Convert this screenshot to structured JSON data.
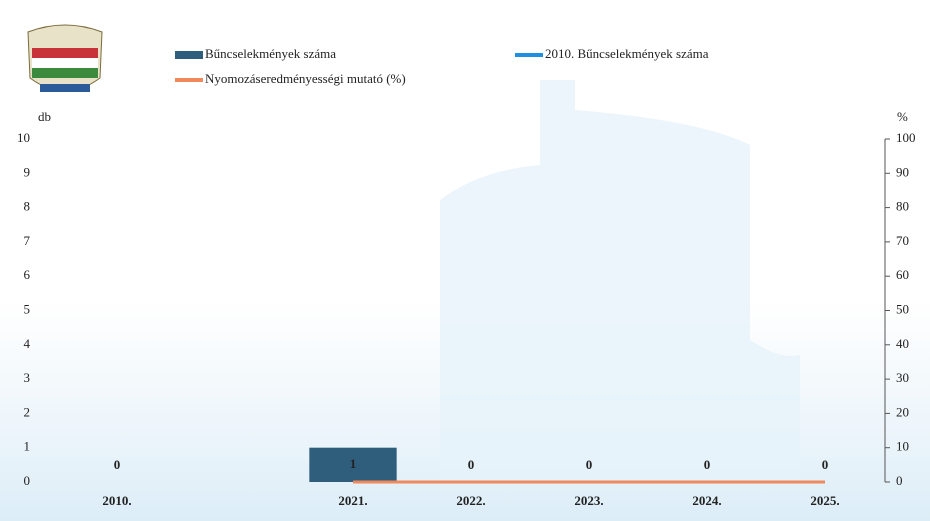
{
  "chart_data": {
    "type": "bar",
    "categories": [
      "2010.",
      null,
      "2021.",
      "2022.",
      "2023.",
      "2024.",
      "2025."
    ],
    "series": [
      {
        "name": "Bűncselekmények száma",
        "type": "bar",
        "color": "#2f5d7c",
        "values": [
          0,
          null,
          1,
          0,
          0,
          0,
          0
        ]
      },
      {
        "name": "2010. Bűncselekmények száma",
        "type": "line",
        "color": "#1f8fe0",
        "values": [
          null,
          null,
          null,
          null,
          null,
          null,
          null
        ]
      },
      {
        "name": "Nyomozáseredményességi mutató (%)",
        "type": "line",
        "axis": "y2",
        "color": "#f08a5d",
        "values": [
          null,
          null,
          0,
          0,
          0,
          0,
          0
        ]
      }
    ],
    "y_label": "db",
    "y2_label": "%",
    "ylim": [
      0,
      10
    ],
    "yticks": [
      0,
      1,
      2,
      3,
      4,
      5,
      6,
      7,
      8,
      9,
      10
    ],
    "y2lim": [
      0,
      100
    ],
    "y2ticks": [
      0,
      10,
      20,
      30,
      40,
      50,
      60,
      70,
      80,
      90,
      100
    ]
  }
}
